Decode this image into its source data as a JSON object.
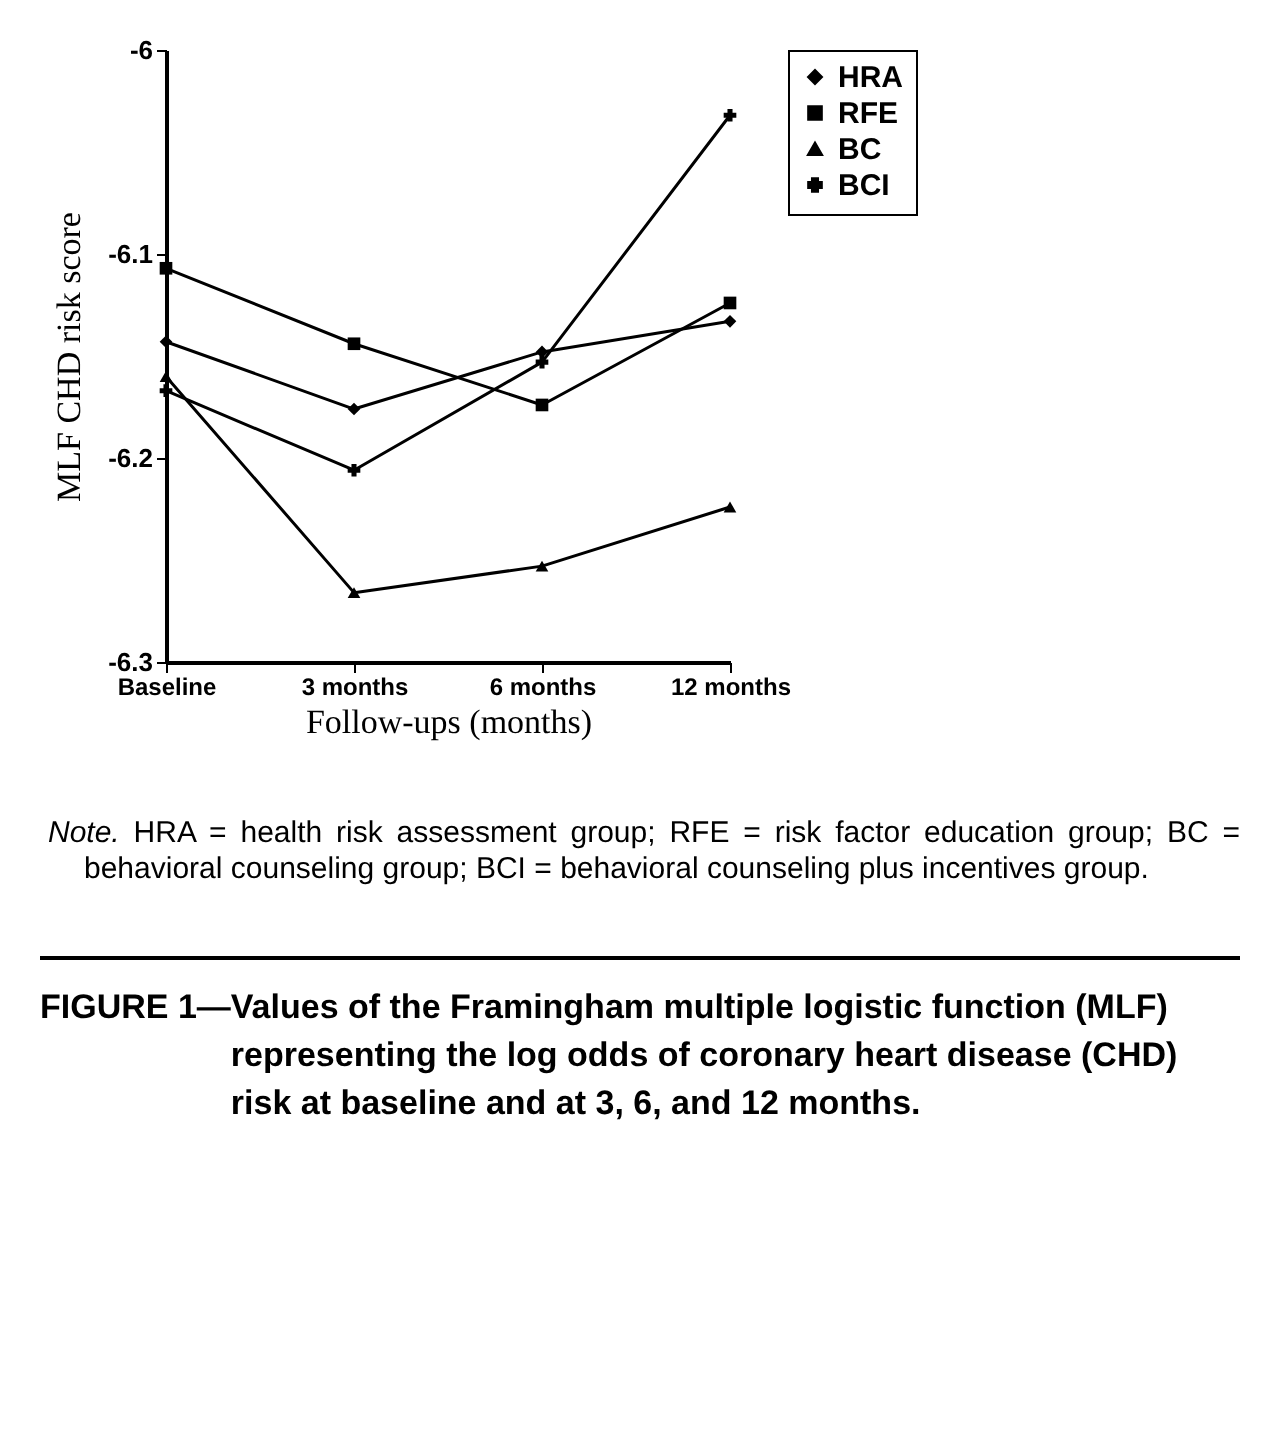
{
  "chart_data": {
    "type": "line",
    "title": "FIGURE 1—Values of the Framingham multiple logistic function (MLF) representing the log odds of coronary heart disease (CHD) risk at baseline and at 3, 6, and 12 months.",
    "xlabel": "Follow-ups (months)",
    "ylabel": "MLF CHD risk score",
    "annotations": [
      "Note.",
      "HRA = health risk assessment group; RFE = risk factor education group; BC = behavioral counseling group; BCI = behavioral counseling plus incentives group."
    ],
    "categories": [
      "Baseline",
      "3 months",
      "6 months",
      "12 months"
    ],
    "series": [
      {
        "name": "HRA",
        "color": "#000000",
        "marker": "diamond",
        "values": [
          -6.143,
          -6.176,
          -6.148,
          -6.133
        ]
      },
      {
        "name": "RFE",
        "color": "#000000",
        "marker": "square",
        "values": [
          -6.107,
          -6.144,
          -6.174,
          -6.124
        ]
      },
      {
        "name": "BC",
        "color": "#000000",
        "marker": "triangle",
        "values": [
          -6.16,
          -6.266,
          -6.253,
          -6.224
        ]
      },
      {
        "name": "BCI",
        "color": "#000000",
        "marker": "cross",
        "values": [
          -6.167,
          -6.206,
          -6.153,
          -6.032
        ]
      }
    ],
    "ylim": [
      -6.3,
      -6
    ],
    "yticks": [
      -6.3,
      -6.2,
      -6.1,
      -6
    ],
    "grid": false,
    "legend": "right",
    "line_style": "solid"
  }
}
